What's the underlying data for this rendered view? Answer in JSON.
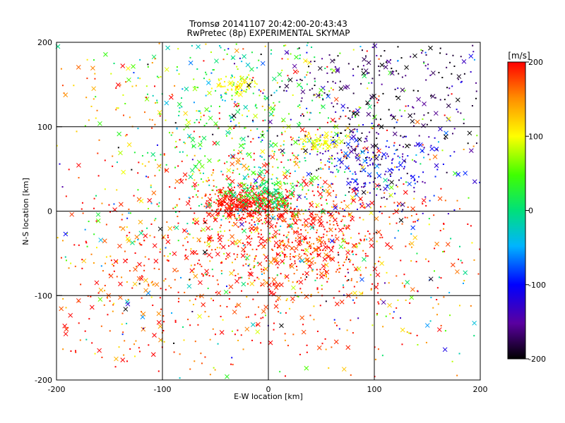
{
  "chart_data": {
    "type": "scatter",
    "title": "Tromsø 20141107 20:42:00-20:43:43",
    "subtitle": "RwPretec (8p) EXPERIMENTAL SKYMAP",
    "xlabel": "E-W location [km]",
    "ylabel": "N-S location [km]",
    "xlim": [
      -200,
      200
    ],
    "ylim": [
      -200,
      200
    ],
    "xticks": [
      "-200",
      "-100",
      "0",
      "100",
      "200"
    ],
    "yticks": [
      "-200",
      "-100",
      "0",
      "100",
      "200"
    ],
    "grid": true,
    "colorbar": {
      "title": "[m/s]",
      "min": -200,
      "max": 200,
      "ticks": [
        "-200",
        "-100",
        "0",
        "100",
        "200"
      ]
    },
    "clusters": [
      {
        "x": 0,
        "y": -40,
        "sx": 90,
        "sy": 70,
        "vmean": 180,
        "vsd": 40,
        "n": 900
      },
      {
        "x": -20,
        "y": 8,
        "sx": 22,
        "sy": 10,
        "vmean": 200,
        "vsd": 15,
        "n": 380
      },
      {
        "x": 30,
        "y": -30,
        "sx": 35,
        "sy": 25,
        "vmean": 195,
        "vsd": 20,
        "n": 300
      },
      {
        "x": -20,
        "y": 100,
        "sx": 55,
        "sy": 70,
        "vmean": 30,
        "vsd": 50,
        "n": 500
      },
      {
        "x": 95,
        "y": 55,
        "sx": 35,
        "sy": 30,
        "vmean": -120,
        "vsd": 40,
        "n": 260
      },
      {
        "x": 110,
        "y": 140,
        "sx": 60,
        "sy": 45,
        "vmean": -175,
        "vsd": 30,
        "n": 300
      },
      {
        "x": 0,
        "y": 20,
        "sx": 15,
        "sy": 10,
        "vmean": 20,
        "vsd": 20,
        "n": 140
      },
      {
        "x": -30,
        "y": 150,
        "sx": 10,
        "sy": 6,
        "vmean": 100,
        "vsd": 10,
        "n": 60
      },
      {
        "x": 50,
        "y": 82,
        "sx": 10,
        "sy": 5,
        "vmean": 100,
        "vsd": 10,
        "n": 60
      },
      {
        "x": 0,
        "y": 0,
        "sx": 150,
        "sy": 140,
        "vmean": 60,
        "vsd": 140,
        "n": 700
      },
      {
        "x": -150,
        "y": 140,
        "sx": 40,
        "sy": 40,
        "vmean": 150,
        "vsd": 40,
        "n": 70
      },
      {
        "x": -150,
        "y": -110,
        "sx": 45,
        "sy": 50,
        "vmean": 180,
        "vsd": 30,
        "n": 80
      }
    ]
  }
}
